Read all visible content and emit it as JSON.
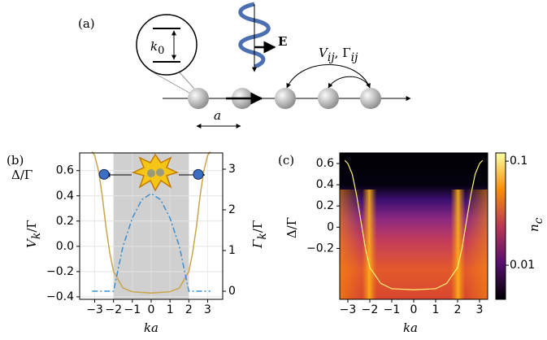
{
  "panel_a": {
    "label": "(a)",
    "inset_label": [
      "k",
      "0"
    ],
    "field_label": "E",
    "coupling_label": [
      "V",
      "ij",
      ", Γ",
      "ij"
    ],
    "spacing_label": "a"
  },
  "chart_data": [
    {
      "type": "line",
      "panel_label": "(b)",
      "xlabel": "ka",
      "ylabel": [
        "V",
        "k",
        "/Γ"
      ],
      "y2label": [
        "Γ",
        "k",
        "/Γ"
      ],
      "annotation": "Δ/Γ",
      "xlim": [
        -3.8,
        3.8
      ],
      "ylim": [
        -0.42,
        0.74
      ],
      "y2lim": [
        -0.2,
        3.4
      ],
      "xticks": [
        {
          "value": -3,
          "label": "−3"
        },
        {
          "value": -2,
          "label": "−2"
        },
        {
          "value": -1,
          "label": "−1"
        },
        0,
        1,
        2,
        3
      ],
      "yticks": [
        {
          "value": -0.4,
          "label": "−0.4"
        },
        {
          "value": -0.2,
          "label": "−0.2"
        },
        {
          "value": 0,
          "label": "0.0"
        },
        0.2,
        0.4,
        0.6
      ],
      "y2ticks": [
        0,
        1,
        2,
        3
      ],
      "shaded": [
        -2,
        2
      ],
      "series": [
        {
          "color": "#c8a44a",
          "x": [
            -3.14,
            -3,
            -2.8,
            -2.6,
            -2.4,
            -2.2,
            -2,
            -1.5,
            -1,
            0,
            1,
            1.5,
            2,
            2.2,
            2.4,
            2.6,
            2.8,
            3,
            3.14
          ],
          "values": [
            0.75,
            0.72,
            0.6,
            0.4,
            0.15,
            -0.05,
            -0.2,
            -0.33,
            -0.36,
            -0.37,
            -0.36,
            -0.33,
            -0.2,
            -0.05,
            0.15,
            0.4,
            0.6,
            0.72,
            0.75
          ]
        },
        {
          "color": "#3a8fd0",
          "axis": "y2",
          "x": [
            -3.14,
            -2.5,
            -2,
            -1.5,
            -1,
            -0.5,
            0,
            0.5,
            1,
            1.5,
            2,
            2.5,
            3.14
          ],
          "values": [
            0,
            0,
            0,
            1.1,
            1.8,
            2.25,
            2.4,
            2.25,
            1.8,
            1.1,
            0,
            0,
            0
          ]
        }
      ],
      "points": {
        "color": "#3b6fc4",
        "x": [
          -2.5,
          2.5
        ],
        "values": [
          0.57,
          0.57
        ]
      }
    },
    {
      "type": "heatmap",
      "panel_label": "(c)",
      "xlabel": "ka",
      "ylabel": "Δ/Γ",
      "colorbar_label": [
        "n",
        "c"
      ],
      "xlim": [
        -3.37,
        3.37
      ],
      "ylim": [
        -0.68,
        0.7
      ],
      "xticks": [
        {
          "value": -3,
          "label": "−3"
        },
        {
          "value": -2,
          "label": "−2"
        },
        {
          "value": -1,
          "label": "−1"
        },
        0,
        1,
        2,
        3
      ],
      "yticks": [
        {
          "value": -0.2,
          "label": "−0.2"
        },
        0,
        0.2,
        0.4,
        0.6
      ],
      "clim": [
        0.0047,
        0.12
      ],
      "clog": true,
      "cticks": [
        0.01,
        0.1
      ],
      "series": [
        {
          "color": "#fff27a",
          "x": [
            -3.14,
            -3,
            -2.8,
            -2.6,
            -2.4,
            -2.2,
            -2,
            -1.5,
            -1,
            0,
            1,
            1.5,
            2,
            2.2,
            2.4,
            2.6,
            2.8,
            3,
            3.14
          ],
          "values": [
            0.63,
            0.6,
            0.5,
            0.3,
            0.05,
            -0.2,
            -0.38,
            -0.53,
            -0.58,
            -0.59,
            -0.58,
            -0.53,
            -0.38,
            -0.2,
            0.05,
            0.3,
            0.5,
            0.6,
            0.63
          ]
        }
      ]
    }
  ]
}
